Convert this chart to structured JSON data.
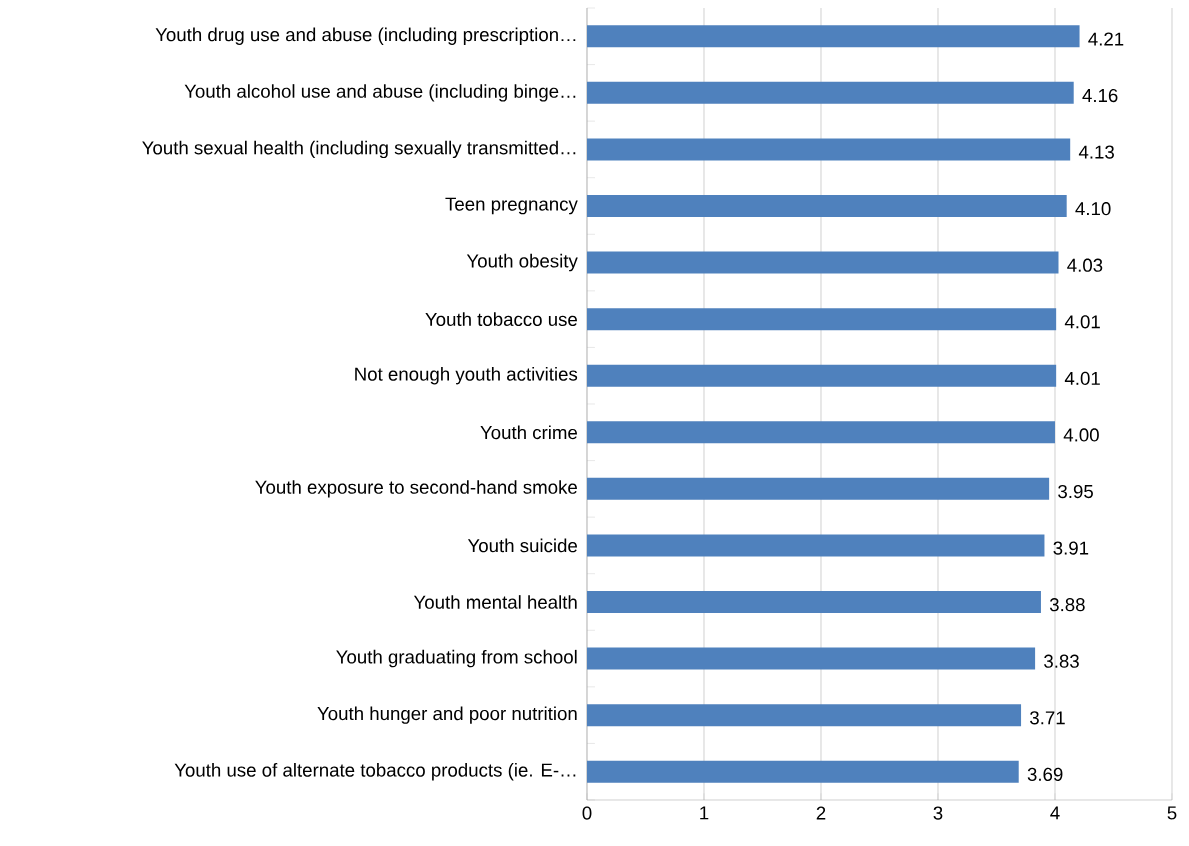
{
  "chart_data": {
    "type": "bar",
    "orientation": "horizontal",
    "categories": [
      "Youth drug use and abuse (including prescription…",
      "Youth alcohol use and abuse (including binge…",
      "Youth sexual health (including sexually transmitted…",
      "Teen pregnancy",
      "Youth obesity",
      "Youth tobacco use",
      "Not enough youth activities",
      "Youth crime",
      "Youth exposure to second-hand smoke",
      "Youth suicide",
      "Youth mental health",
      "Youth graduating from school",
      "Youth hunger and poor nutrition",
      "Youth use of alternate tobacco products (ie. E-…"
    ],
    "values": [
      4.21,
      4.16,
      4.13,
      4.1,
      4.03,
      4.01,
      4.01,
      4.0,
      3.95,
      3.91,
      3.88,
      3.83,
      3.71,
      3.69
    ],
    "value_labels": [
      "4.21",
      "4.16",
      "4.13",
      "4.10",
      "4.03",
      "4.01",
      "4.01",
      "4.00",
      "3.95",
      "3.91",
      "3.88",
      "3.83",
      "3.71",
      "3.69"
    ],
    "color": "#4f81bd",
    "xlim": [
      0,
      5
    ],
    "xticks": [
      0,
      1,
      2,
      3,
      4,
      5
    ],
    "grid": "x"
  }
}
